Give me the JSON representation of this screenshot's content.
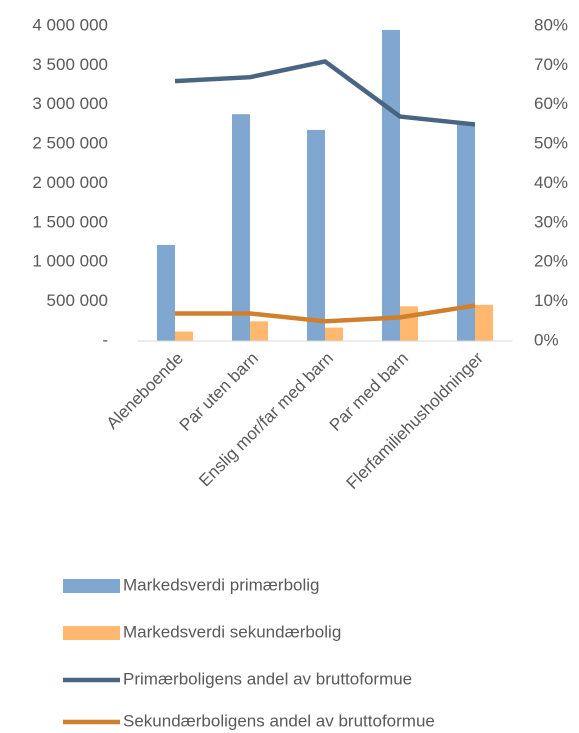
{
  "chart_data": {
    "type": "combo",
    "categories": [
      "Aleneboende",
      "Par uten barn",
      "Enslig mor/far med barn",
      "Par med barn",
      "Flerfamiliehusholdninger"
    ],
    "series": [
      {
        "name": "Markedsverdi primærbolig",
        "type": "bar",
        "axis": "y",
        "color": "#7fa7cf",
        "values": [
          1220000,
          2880000,
          2680000,
          3950000,
          2760000
        ]
      },
      {
        "name": "Markedsverdi sekundærbolig",
        "type": "bar",
        "axis": "y",
        "color": "#ffb870",
        "values": [
          120000,
          250000,
          170000,
          440000,
          460000
        ]
      },
      {
        "name": "Primærboligens andel av bruttoformue",
        "type": "line",
        "axis": "y2",
        "color": "#4a6583",
        "values": [
          66,
          67,
          71,
          57,
          55
        ]
      },
      {
        "name": "Sekundærboligens andel av bruttoformue",
        "type": "line",
        "axis": "y2",
        "color": "#d07f2c",
        "values": [
          7,
          7,
          5,
          6,
          9
        ]
      }
    ],
    "ylim": [
      0,
      4000000
    ],
    "yticks": [
      {
        "value": 0,
        "label": "-"
      },
      {
        "value": 500000,
        "label": "500 000"
      },
      {
        "value": 1000000,
        "label": "1 000 000"
      },
      {
        "value": 1500000,
        "label": "1 500 000"
      },
      {
        "value": 2000000,
        "label": "2 000 000"
      },
      {
        "value": 2500000,
        "label": "2 500 000"
      },
      {
        "value": 3000000,
        "label": "3 000 000"
      },
      {
        "value": 3500000,
        "label": "3 500 000"
      },
      {
        "value": 4000000,
        "label": "4 000 000"
      }
    ],
    "y2lim": [
      0,
      80
    ],
    "y2ticks": [
      {
        "value": 0,
        "label": "0%"
      },
      {
        "value": 10,
        "label": "10%"
      },
      {
        "value": 20,
        "label": "20%"
      },
      {
        "value": 30,
        "label": "30%"
      },
      {
        "value": 40,
        "label": "40%"
      },
      {
        "value": 50,
        "label": "50%"
      },
      {
        "value": 60,
        "label": "60%"
      },
      {
        "value": 70,
        "label": "70%"
      },
      {
        "value": 80,
        "label": "80%"
      }
    ],
    "grid": false,
    "legend": "bottom"
  }
}
